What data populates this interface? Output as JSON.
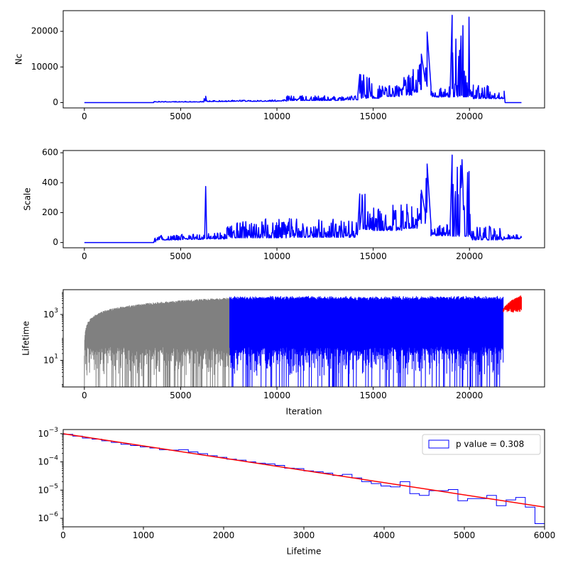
{
  "chart_data": [
    {
      "type": "line",
      "ylabel": "Nc",
      "xlabel": "",
      "xlim": [
        -1100,
        23900
      ],
      "ylim": [
        -1500,
        25800
      ],
      "xticks": [
        "0",
        "5000",
        "10000",
        "15000",
        "20000"
      ],
      "yticks": [
        "0",
        "10000",
        "20000"
      ],
      "series": [
        {
          "color": "#0000ff",
          "x": [
            0,
            3600,
            6200,
            6300,
            6350,
            7400,
            10000,
            10500,
            10600,
            12500,
            13500,
            14200,
            14300,
            15000,
            15400,
            16000,
            16500,
            17000,
            17300,
            17500,
            17700,
            17800,
            18000,
            19000,
            19100,
            20000,
            20200,
            21000,
            21800,
            21850,
            22700
          ],
          "y": [
            0,
            60,
            350,
            1800,
            400,
            600,
            800,
            1000,
            2000,
            1300,
            1800,
            2000,
            7900,
            3000,
            5500,
            4500,
            5500,
            7800,
            10000,
            13600,
            6000,
            19800,
            4500,
            4000,
            24500,
            4200,
            5100,
            2800,
            3200,
            0,
            0
          ]
        }
      ]
    },
    {
      "type": "line",
      "ylabel": "Scale",
      "xlabel": "",
      "xlim": [
        -1100,
        23900
      ],
      "ylim": [
        -35,
        615
      ],
      "xticks": [
        "0",
        "5000",
        "10000",
        "15000",
        "20000"
      ],
      "yticks": [
        "0",
        "200",
        "400",
        "600"
      ],
      "series": [
        {
          "color": "#0000ff",
          "x": [
            0,
            3600,
            3700,
            5000,
            6250,
            6300,
            6350,
            7300,
            7400,
            10600,
            10650,
            14200,
            14300,
            15000,
            15500,
            16000,
            16500,
            17000,
            17300,
            17500,
            17700,
            17800,
            18000,
            19000,
            19100,
            20100,
            21700,
            21800,
            22700
          ],
          "y": [
            0,
            0,
            40,
            50,
            60,
            375,
            60,
            65,
            160,
            80,
            160,
            90,
            325,
            240,
            220,
            220,
            260,
            260,
            290,
            350,
            200,
            525,
            120,
            120,
            585,
            110,
            40,
            60,
            60
          ]
        }
      ]
    },
    {
      "type": "line",
      "ylabel": "Lifetime",
      "xlabel": "Iteration",
      "yscale": "log",
      "xlim": [
        -1100,
        23900
      ],
      "ylim": [
        0.7,
        12000
      ],
      "xticks": [
        "0",
        "5000",
        "10000",
        "15000",
        "20000"
      ],
      "yticks": [
        "10^3",
        "10^1"
      ],
      "series": [
        {
          "name": "",
          "color": "#808080",
          "x_range": [
            0,
            7550
          ],
          "envelope_max": 6000
        },
        {
          "name": "",
          "color": "#0000ff",
          "x_range": [
            7550,
            21750
          ],
          "envelope_max": 6500
        },
        {
          "name": "",
          "color": "#ff0000",
          "x_range": [
            21750,
            22700
          ],
          "envelope_max": 7000
        }
      ]
    },
    {
      "type": "histogram",
      "ylabel": "",
      "xlabel": "Lifetime",
      "yscale": "log",
      "xlim": [
        0,
        6000
      ],
      "ylim": [
        5e-07,
        0.0014
      ],
      "xticks": [
        "0",
        "1000",
        "2000",
        "3000",
        "4000",
        "5000",
        "6000"
      ],
      "yticks": [
        "10^-3",
        "10^-4",
        "10^-5",
        "10^-6"
      ],
      "legend": {
        "label": "p value = 0.308",
        "placement": "top-right"
      },
      "series": [
        {
          "name": "p value = 0.308",
          "color": "#0000ff",
          "bin_edges": [
            0,
            120,
            240,
            360,
            480,
            600,
            720,
            840,
            960,
            1080,
            1200,
            1320,
            1440,
            1560,
            1680,
            1800,
            1920,
            2040,
            2160,
            2280,
            2400,
            2520,
            2640,
            2760,
            2880,
            3000,
            3120,
            3240,
            3360,
            3480,
            3600,
            3720,
            3840,
            3960,
            4080,
            4200,
            4320,
            4440,
            4560,
            4680,
            4800,
            4920,
            5040,
            5160,
            5280,
            5400,
            5520,
            5640,
            5760,
            5880,
            6000
          ],
          "values": [
            0.00095,
            0.00082,
            0.0007,
            0.00064,
            0.00056,
            0.00049,
            0.00042,
            0.00038,
            0.00034,
            0.00031,
            0.00027,
            0.00026,
            0.00027,
            0.000225,
            0.000195,
            0.000165,
            0.000145,
            0.000125,
            0.000115,
            0.0001,
            9e-05,
            8.5e-05,
            7.5e-05,
            6e-05,
            5.8e-05,
            4.8e-05,
            4.5e-05,
            4e-05,
            3.3e-05,
            3.6e-05,
            2.7e-05,
            2e-05,
            1.7e-05,
            1.4e-05,
            1.3e-05,
            2e-05,
            7.5e-06,
            6.5e-06,
            9.5e-06,
            9.5e-06,
            1.05e-05,
            4.2e-06,
            5e-06,
            5e-06,
            6.5e-06,
            2.8e-06,
            4.5e-06,
            5.5e-06,
            2.5e-06,
            6.5e-07
          ]
        },
        {
          "name": "",
          "color": "#ff0000",
          "type": "line",
          "x": [
            0,
            6000
          ],
          "y": [
            0.001,
            2.5e-06
          ]
        }
      ]
    }
  ]
}
